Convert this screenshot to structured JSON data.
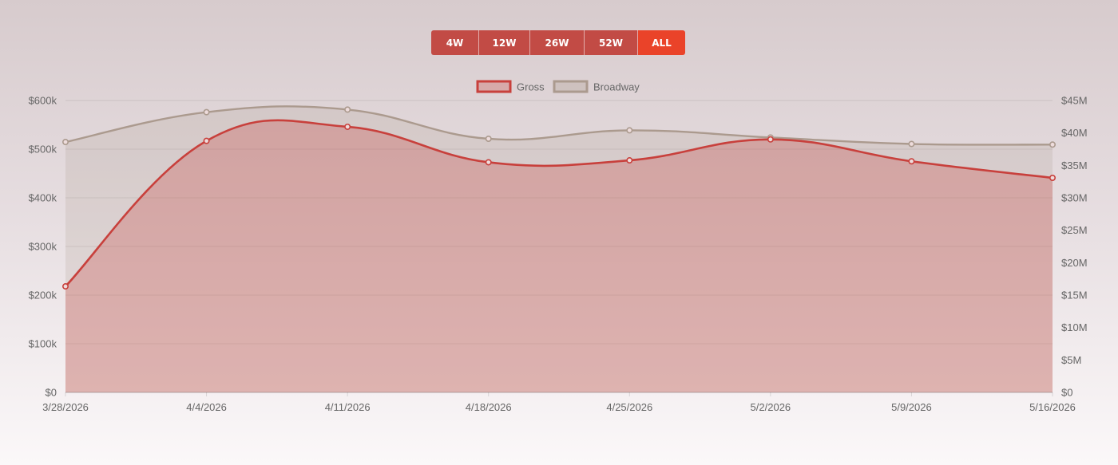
{
  "range_selector": {
    "buttons": [
      {
        "label": "4W",
        "active": false
      },
      {
        "label": "12W",
        "active": false
      },
      {
        "label": "26W",
        "active": false
      },
      {
        "label": "52W",
        "active": false
      },
      {
        "label": "ALL",
        "active": true
      }
    ]
  },
  "colors": {
    "gross": "#c8403c",
    "broadway": "#ab9a8e",
    "button": "#c24b45",
    "button_active": "#ea4329"
  },
  "chart_data": {
    "type": "area",
    "title": "",
    "xlabel": "",
    "ylabel": "",
    "x": [
      "3/28/2026",
      "4/4/2026",
      "4/11/2026",
      "4/18/2026",
      "4/25/2026",
      "5/2/2026",
      "5/9/2026",
      "5/16/2026"
    ],
    "legend": [
      "Gross",
      "Broadway"
    ],
    "legend_position": "top",
    "grid": true,
    "y_left": {
      "ylim": [
        0,
        600000
      ],
      "ticks": [
        0,
        100000,
        200000,
        300000,
        400000,
        500000,
        600000
      ],
      "tick_labels": [
        "$0",
        "$100k",
        "$200k",
        "$300k",
        "$400k",
        "$500k",
        "$600k"
      ]
    },
    "y_right": {
      "ylim": [
        0,
        45000000
      ],
      "ticks": [
        0,
        5000000,
        10000000,
        15000000,
        20000000,
        25000000,
        30000000,
        35000000,
        40000000,
        45000000
      ],
      "tick_labels": [
        "$0",
        "$5M",
        "$10M",
        "$15M",
        "$20M",
        "$25M",
        "$30M",
        "$35M",
        "$40M",
        "$45M"
      ]
    },
    "series": [
      {
        "name": "Gross",
        "axis": "left",
        "values": [
          218000,
          517000,
          546000,
          473000,
          477000,
          520000,
          475000,
          441000
        ]
      },
      {
        "name": "Broadway",
        "axis": "right",
        "values": [
          38600000,
          43200000,
          43600000,
          39100000,
          40400000,
          39300000,
          38300000,
          38200000
        ]
      }
    ]
  }
}
